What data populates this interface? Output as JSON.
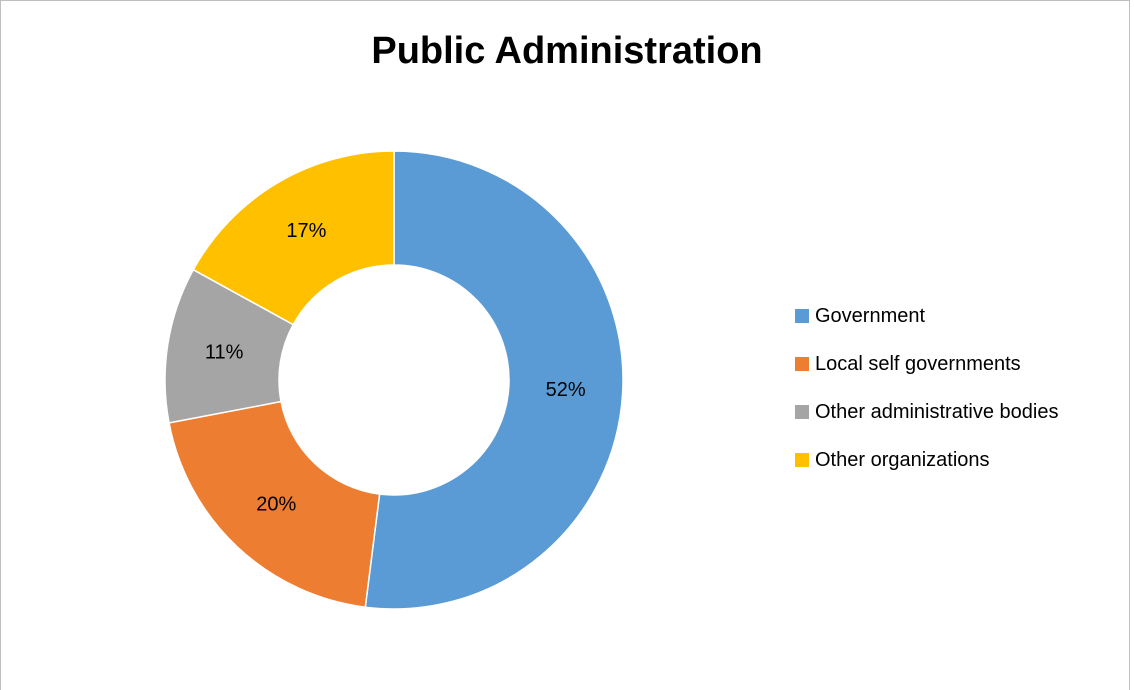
{
  "chart_data": {
    "type": "pie",
    "style": "donut",
    "title": "Public Administration",
    "series": [
      {
        "name": "Government",
        "value": 52,
        "label": "52%",
        "color": "#5b9bd5"
      },
      {
        "name": "Local self governments",
        "value": 20,
        "label": "20%",
        "color": "#ed7d31"
      },
      {
        "name": "Other administrative bodies",
        "value": 11,
        "label": "11%",
        "color": "#a5a5a5"
      },
      {
        "name": "Other organizations",
        "value": 17,
        "label": "17%",
        "color": "#ffc000"
      }
    ],
    "legend_position": "right"
  }
}
